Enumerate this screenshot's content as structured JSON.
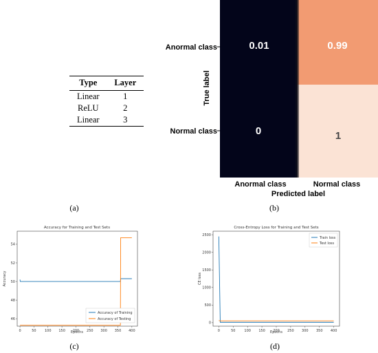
{
  "table": {
    "headers": [
      "Type",
      "Layer"
    ],
    "rows": [
      [
        "Linear",
        "1"
      ],
      [
        "ReLU",
        "2"
      ],
      [
        "Linear",
        "3"
      ]
    ]
  },
  "captions": {
    "a": "(a)",
    "b": "(b)",
    "c": "(c)",
    "d": "(d)"
  },
  "chart_data": [
    {
      "type": "heatmap",
      "id": "b",
      "xlabel": "Predicted label",
      "ylabel": "True label",
      "x_categories": [
        "Anormal class",
        "Normal class"
      ],
      "y_categories": [
        "Anormal class",
        "Normal class"
      ],
      "values": [
        [
          "0.01",
          "0.99"
        ],
        [
          "0",
          "1"
        ]
      ],
      "colors": {
        "low": "#03051a",
        "high_mid": "#f29b72",
        "high": "#fbe3d5"
      }
    },
    {
      "type": "line",
      "id": "c",
      "title": "Accuracy for Training and Test Sets",
      "xlabel": "Epochs",
      "ylabel": "Accuracy",
      "xlim": [
        -10,
        420
      ],
      "ylim": [
        45.2,
        55.4
      ],
      "xticks": [
        "0",
        "50",
        "100",
        "150",
        "200",
        "250",
        "300",
        "350",
        "400"
      ],
      "yticks": [
        "46",
        "48",
        "50",
        "52",
        "54"
      ],
      "legend_position": "bottom-right",
      "series": [
        {
          "name": "Accuracy of Training",
          "color": "#1f77b4",
          "x": [
            0,
            1,
            2,
            359,
            360,
            400
          ],
          "y": [
            50.2,
            50.0,
            50.0,
            50.0,
            50.3,
            50.3
          ]
        },
        {
          "name": "Accuracy of Testing",
          "color": "#ff7f0e",
          "x": [
            0,
            359,
            360,
            400
          ],
          "y": [
            45.3,
            45.3,
            54.7,
            54.7
          ]
        }
      ]
    },
    {
      "type": "line",
      "id": "d",
      "title": "Cross-Entropy Loss for Training and Test Sets",
      "xlabel": "Epochs",
      "ylabel": "CE loss",
      "xlim": [
        -20,
        420
      ],
      "ylim": [
        -100,
        2600
      ],
      "xticks": [
        "0",
        "50",
        "100",
        "150",
        "200",
        "250",
        "300",
        "350",
        "400"
      ],
      "yticks": [
        "0",
        "500",
        "1000",
        "1500",
        "2000",
        "2500"
      ],
      "legend_position": "top-right",
      "series": [
        {
          "name": "Train loss",
          "color": "#1f77b4",
          "x": [
            0,
            5,
            10,
            400
          ],
          "y": [
            2450,
            10,
            10,
            10
          ]
        },
        {
          "name": "Test loss",
          "color": "#ff7f0e",
          "x": [
            0,
            2,
            5,
            400
          ],
          "y": [
            60,
            55,
            50,
            50
          ]
        }
      ]
    }
  ]
}
